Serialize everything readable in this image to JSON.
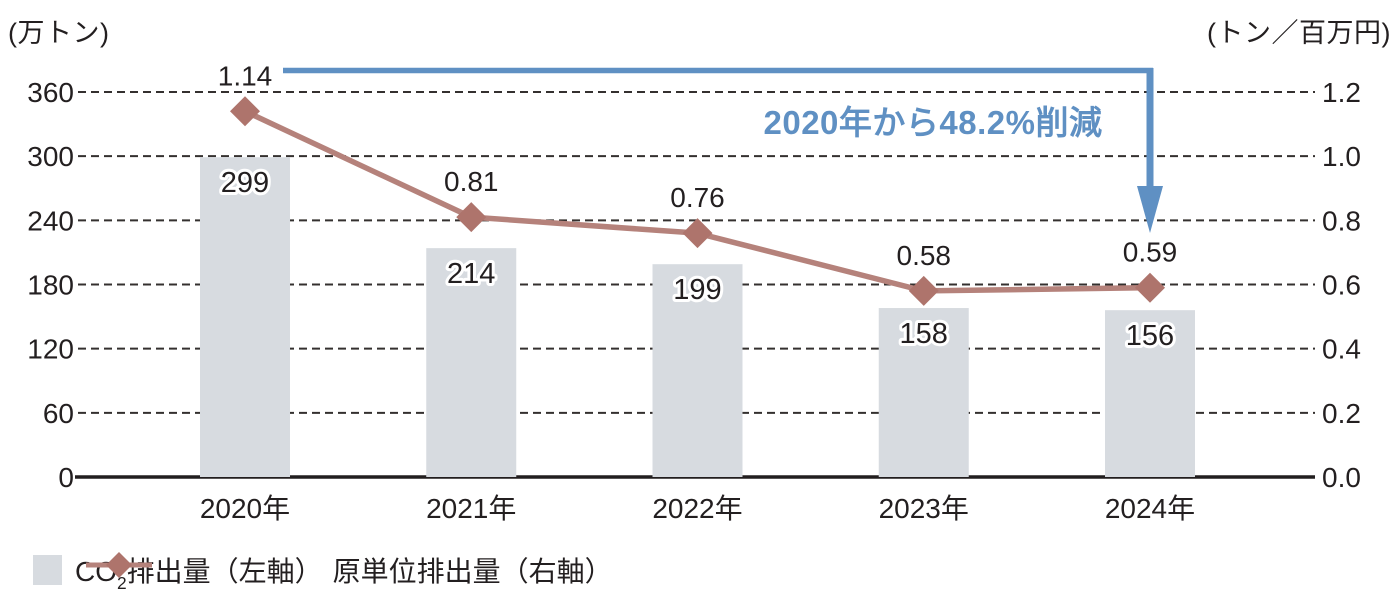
{
  "chart_data": {
    "type": "bar",
    "title": "",
    "categories": [
      "2020年",
      "2021年",
      "2022年",
      "2023年",
      "2024年"
    ],
    "series": [
      {
        "name": "CO2排出量（左軸）",
        "type": "bar",
        "axis": "left",
        "values": [
          299,
          214,
          199,
          158,
          156
        ],
        "value_labels": [
          "299",
          "214",
          "199",
          "158",
          "156"
        ]
      },
      {
        "name": "原単位排出量（右軸）",
        "type": "line",
        "axis": "right",
        "marker": "diamond",
        "values": [
          1.14,
          0.81,
          0.76,
          0.58,
          0.59
        ],
        "value_labels": [
          "1.14",
          "0.81",
          "0.76",
          "0.58",
          "0.59"
        ]
      }
    ],
    "left_axis": {
      "unit": "(万トン)",
      "tick_labels": [
        "0",
        "60",
        "120",
        "180",
        "240",
        "300",
        "360"
      ],
      "range": [
        0,
        360
      ],
      "grid": "dashed"
    },
    "right_axis": {
      "unit": "(トン／百万円)",
      "tick_labels": [
        "0.0",
        "0.2",
        "0.4",
        "0.6",
        "0.8",
        "1.0",
        "1.2"
      ],
      "range": [
        0,
        1.2
      ]
    },
    "annotation": {
      "text": "2020年から48.2%削減",
      "arrow": "from 2020 line point across to 2024, pointing down at 0.59"
    },
    "legend_position": "bottom-left"
  },
  "legend": {
    "bar": {
      "prefix": "CO",
      "sub": "2",
      "suffix": "排出量（左軸）"
    },
    "line": {
      "label": "原単位排出量（右軸）"
    }
  },
  "colors": {
    "bar": "#d7dbe0",
    "line": "#b5827b",
    "marker": "#ae746c",
    "annotation": "#5f90c3",
    "grid": "#34302f",
    "axis": "#221e1f",
    "text": "#231f20",
    "background": "#ffffff"
  }
}
